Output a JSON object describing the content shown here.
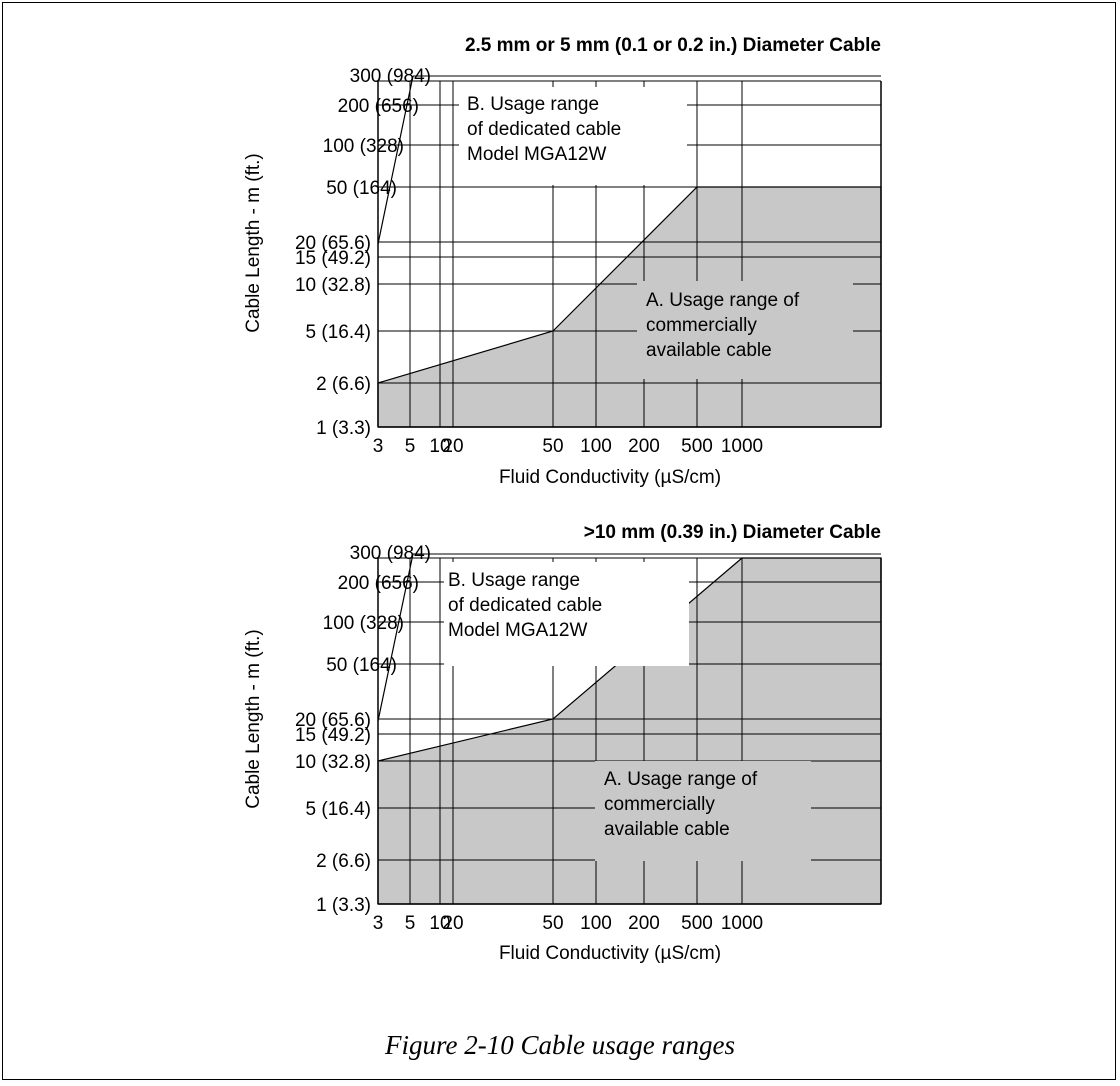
{
  "figure_caption": "Figure 2-10 Cable usage ranges",
  "colors": {
    "fill": "#c8c8c8",
    "grid": "#000000",
    "label_box": "#ffffff"
  },
  "chart_data": [
    {
      "type": "area",
      "title": "2.5 mm or 5 mm (0.1 or 0.2 in.) Diameter Cable",
      "xlabel": "Fluid Conductivity (µS/cm)",
      "ylabel": "Cable Length - m (ft.)",
      "x_scale": "log",
      "y_scale": "custom",
      "x_ticks": [
        {
          "value": 3,
          "label": "3"
        },
        {
          "value": 5,
          "label": "5"
        },
        {
          "value": 10,
          "label": "10"
        },
        {
          "value": 20,
          "label": "20"
        },
        {
          "value": 50,
          "label": "50"
        },
        {
          "value": 100,
          "label": "100"
        },
        {
          "value": 200,
          "label": "200"
        },
        {
          "value": 500,
          "label": "500"
        },
        {
          "value": 1000,
          "label": "1000"
        }
      ],
      "y_ticks": [
        {
          "value": 1,
          "label": "1 (3.3)"
        },
        {
          "value": 2,
          "label": "2 (6.6)"
        },
        {
          "value": 5,
          "label": "5 (16.4)"
        },
        {
          "value": 10,
          "label": "10 (32.8)"
        },
        {
          "value": 15,
          "label": "15 (49.2)"
        },
        {
          "value": 20,
          "label": "20 (65.6)"
        },
        {
          "value": 50,
          "label": "50 (164)"
        },
        {
          "value": 100,
          "label": "100 (328)"
        },
        {
          "value": 200,
          "label": "200 (656)"
        },
        {
          "value": 300,
          "label": "300 (984)"
        }
      ],
      "series": [
        {
          "name": "A. Usage range of commercially available cable",
          "points": [
            [
              3,
              2
            ],
            [
              50,
              5
            ],
            [
              500,
              50
            ],
            [
              3000,
              50
            ]
          ]
        }
      ],
      "annotations": [
        {
          "name": "range-b",
          "lines": [
            "B. Usage range",
            "of dedicated cable",
            "Model MGA12W"
          ]
        },
        {
          "name": "range-a",
          "lines": [
            "A. Usage range of",
            "commercially",
            "available cable"
          ]
        }
      ]
    },
    {
      "type": "area",
      "title": ">10 mm (0.39 in.) Diameter Cable",
      "xlabel": "Fluid Conductivity (µS/cm)",
      "ylabel": "Cable Length - m (ft.)",
      "x_scale": "log",
      "y_scale": "custom",
      "x_ticks": [
        {
          "value": 3,
          "label": "3"
        },
        {
          "value": 5,
          "label": "5"
        },
        {
          "value": 10,
          "label": "10"
        },
        {
          "value": 20,
          "label": "20"
        },
        {
          "value": 50,
          "label": "50"
        },
        {
          "value": 100,
          "label": "100"
        },
        {
          "value": 200,
          "label": "200"
        },
        {
          "value": 500,
          "label": "500"
        },
        {
          "value": 1000,
          "label": "1000"
        }
      ],
      "y_ticks": [
        {
          "value": 1,
          "label": "1 (3.3)"
        },
        {
          "value": 2,
          "label": "2 (6.6)"
        },
        {
          "value": 5,
          "label": "5 (16.4)"
        },
        {
          "value": 10,
          "label": "10 (32.8)"
        },
        {
          "value": 15,
          "label": "15 (49.2)"
        },
        {
          "value": 20,
          "label": "20 (65.6)"
        },
        {
          "value": 50,
          "label": "50 (164)"
        },
        {
          "value": 100,
          "label": "100 (328)"
        },
        {
          "value": 200,
          "label": "200 (656)"
        },
        {
          "value": 300,
          "label": "300 (984)"
        }
      ],
      "series": [
        {
          "name": "A. Usage range of commercially available cable",
          "points": [
            [
              3,
              10
            ],
            [
              50,
              20
            ],
            [
              1000,
              300
            ],
            [
              3000,
              300
            ]
          ]
        }
      ],
      "annotations": [
        {
          "name": "range-b",
          "lines": [
            "B. Usage range",
            "of dedicated cable",
            "Model MGA12W"
          ]
        },
        {
          "name": "range-a",
          "lines": [
            "A. Usage range of",
            "commercially",
            "available cable"
          ]
        }
      ]
    }
  ]
}
